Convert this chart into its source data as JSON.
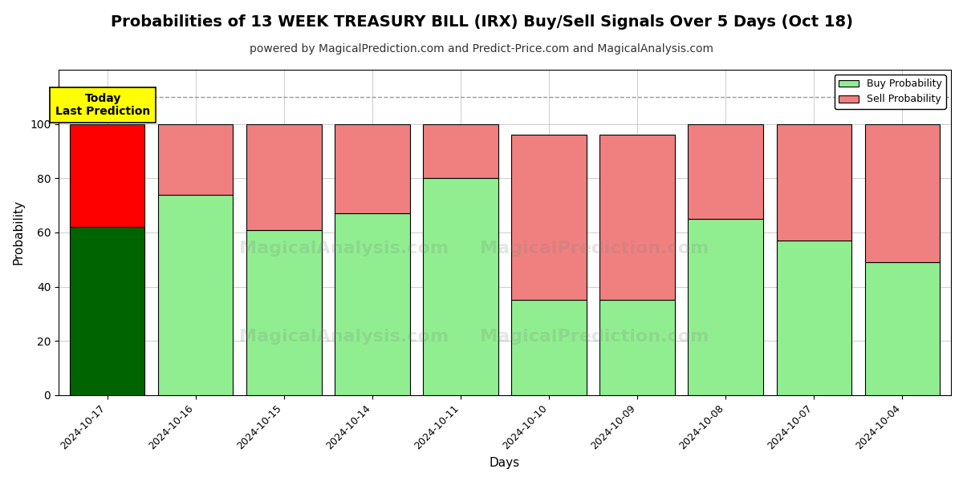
{
  "title": "Probabilities of 13 WEEK TREASURY BILL (IRX) Buy/Sell Signals Over 5 Days (Oct 18)",
  "subtitle": "powered by MagicalPrediction.com and Predict-Price.com and MagicalAnalysis.com",
  "xlabel": "Days",
  "ylabel": "Probability",
  "categories": [
    "2024-10-17",
    "2024-10-16",
    "2024-10-15",
    "2024-10-14",
    "2024-10-11",
    "2024-10-10",
    "2024-10-09",
    "2024-10-08",
    "2024-10-07",
    "2024-10-04"
  ],
  "buy_values": [
    62,
    74,
    61,
    67,
    80,
    35,
    35,
    65,
    57,
    49
  ],
  "sell_values": [
    38,
    26,
    39,
    33,
    20,
    61,
    61,
    35,
    43,
    51
  ],
  "buy_colors": [
    "#006400",
    "#90EE90",
    "#90EE90",
    "#90EE90",
    "#90EE90",
    "#90EE90",
    "#90EE90",
    "#90EE90",
    "#90EE90",
    "#90EE90"
  ],
  "sell_colors": [
    "#FF0000",
    "#F08080",
    "#F08080",
    "#F08080",
    "#F08080",
    "#F08080",
    "#F08080",
    "#F08080",
    "#F08080",
    "#F08080"
  ],
  "legend_buy_color": "#90EE90",
  "legend_sell_color": "#F08080",
  "ylim": [
    0,
    120
  ],
  "yticks": [
    0,
    20,
    40,
    60,
    80,
    100
  ],
  "dashed_line_y": 110,
  "annotation_text": "Today\nLast Prediction",
  "watermark1": "MagicalAnalysis.com",
  "watermark2": "MagicalPrediction.com",
  "background_color": "#ffffff",
  "grid_color": "#cccccc",
  "title_fontsize": 14,
  "subtitle_fontsize": 10,
  "bar_width": 0.85,
  "bar_edgecolor": "#000000"
}
